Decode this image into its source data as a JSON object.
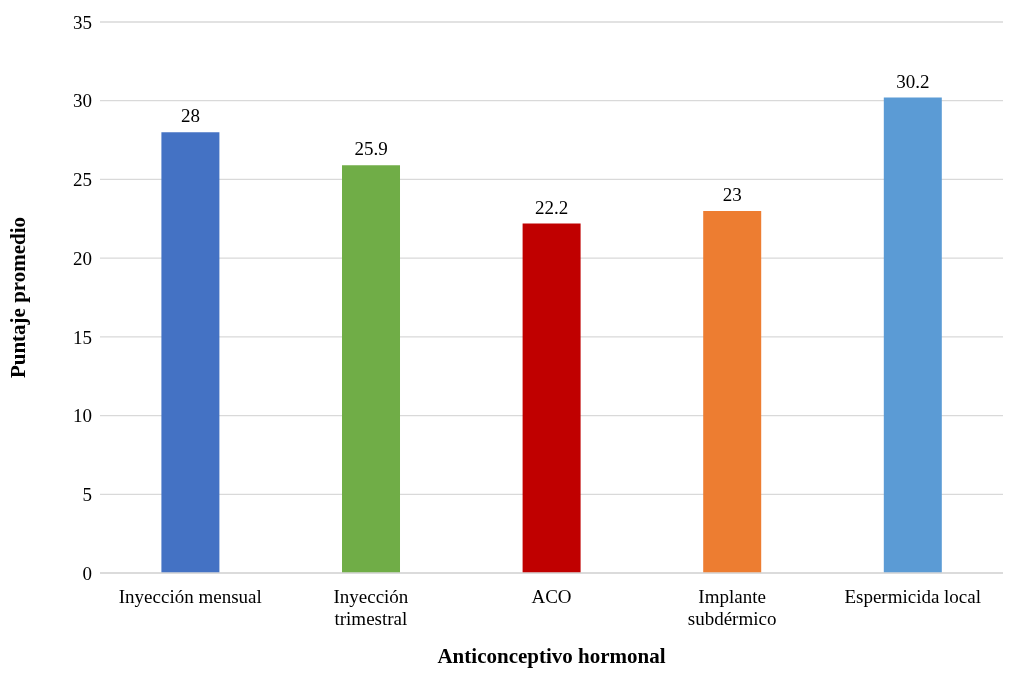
{
  "chart_data": {
    "type": "bar",
    "xlabel": "Anticonceptivo hormonal",
    "ylabel": "Puntaje promedio",
    "categories": [
      "Inyección mensual",
      "Inyección trimestral",
      "ACO",
      "Implante subdérmico",
      "Espermicida local"
    ],
    "values": [
      28,
      25.9,
      22.2,
      23,
      30.2
    ],
    "colors": [
      "#4472c4",
      "#70ad47",
      "#c00000",
      "#ed7d31",
      "#5b9bd5"
    ],
    "ylim": [
      0,
      35
    ],
    "yticks": [
      0,
      5,
      10,
      15,
      20,
      25,
      30,
      35
    ],
    "grid": "y",
    "data_labels": true
  }
}
